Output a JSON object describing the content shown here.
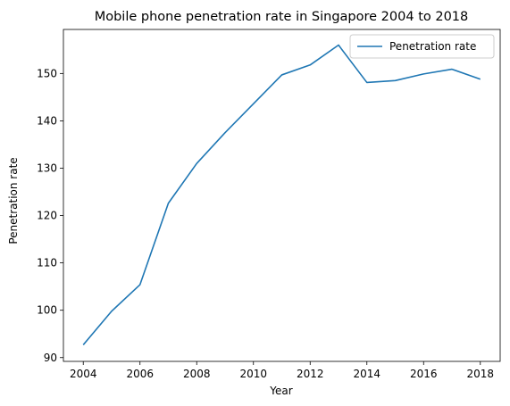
{
  "chart_data": {
    "type": "line",
    "title": "Mobile phone penetration rate in Singapore 2004 to 2018",
    "xlabel": "Year",
    "ylabel": "Penetration rate",
    "xlim": [
      2003.3,
      2018.7
    ],
    "ylim": [
      89.2,
      159.3
    ],
    "xticks": [
      2004,
      2006,
      2008,
      2010,
      2012,
      2014,
      2016,
      2018
    ],
    "yticks": [
      90,
      100,
      110,
      120,
      130,
      140,
      150
    ],
    "grid": false,
    "legend": {
      "position": "top-right"
    },
    "x": [
      2004,
      2005,
      2006,
      2007,
      2008,
      2009,
      2010,
      2011,
      2012,
      2013,
      2014,
      2015,
      2016,
      2017,
      2018
    ],
    "series": [
      {
        "name": "Penetration rate",
        "color": "#1f77b4",
        "values": [
          92.7,
          99.8,
          105.4,
          122.6,
          131.0,
          137.5,
          143.6,
          149.7,
          151.8,
          156.0,
          148.1,
          148.5,
          149.9,
          150.9,
          148.8
        ]
      }
    ]
  }
}
